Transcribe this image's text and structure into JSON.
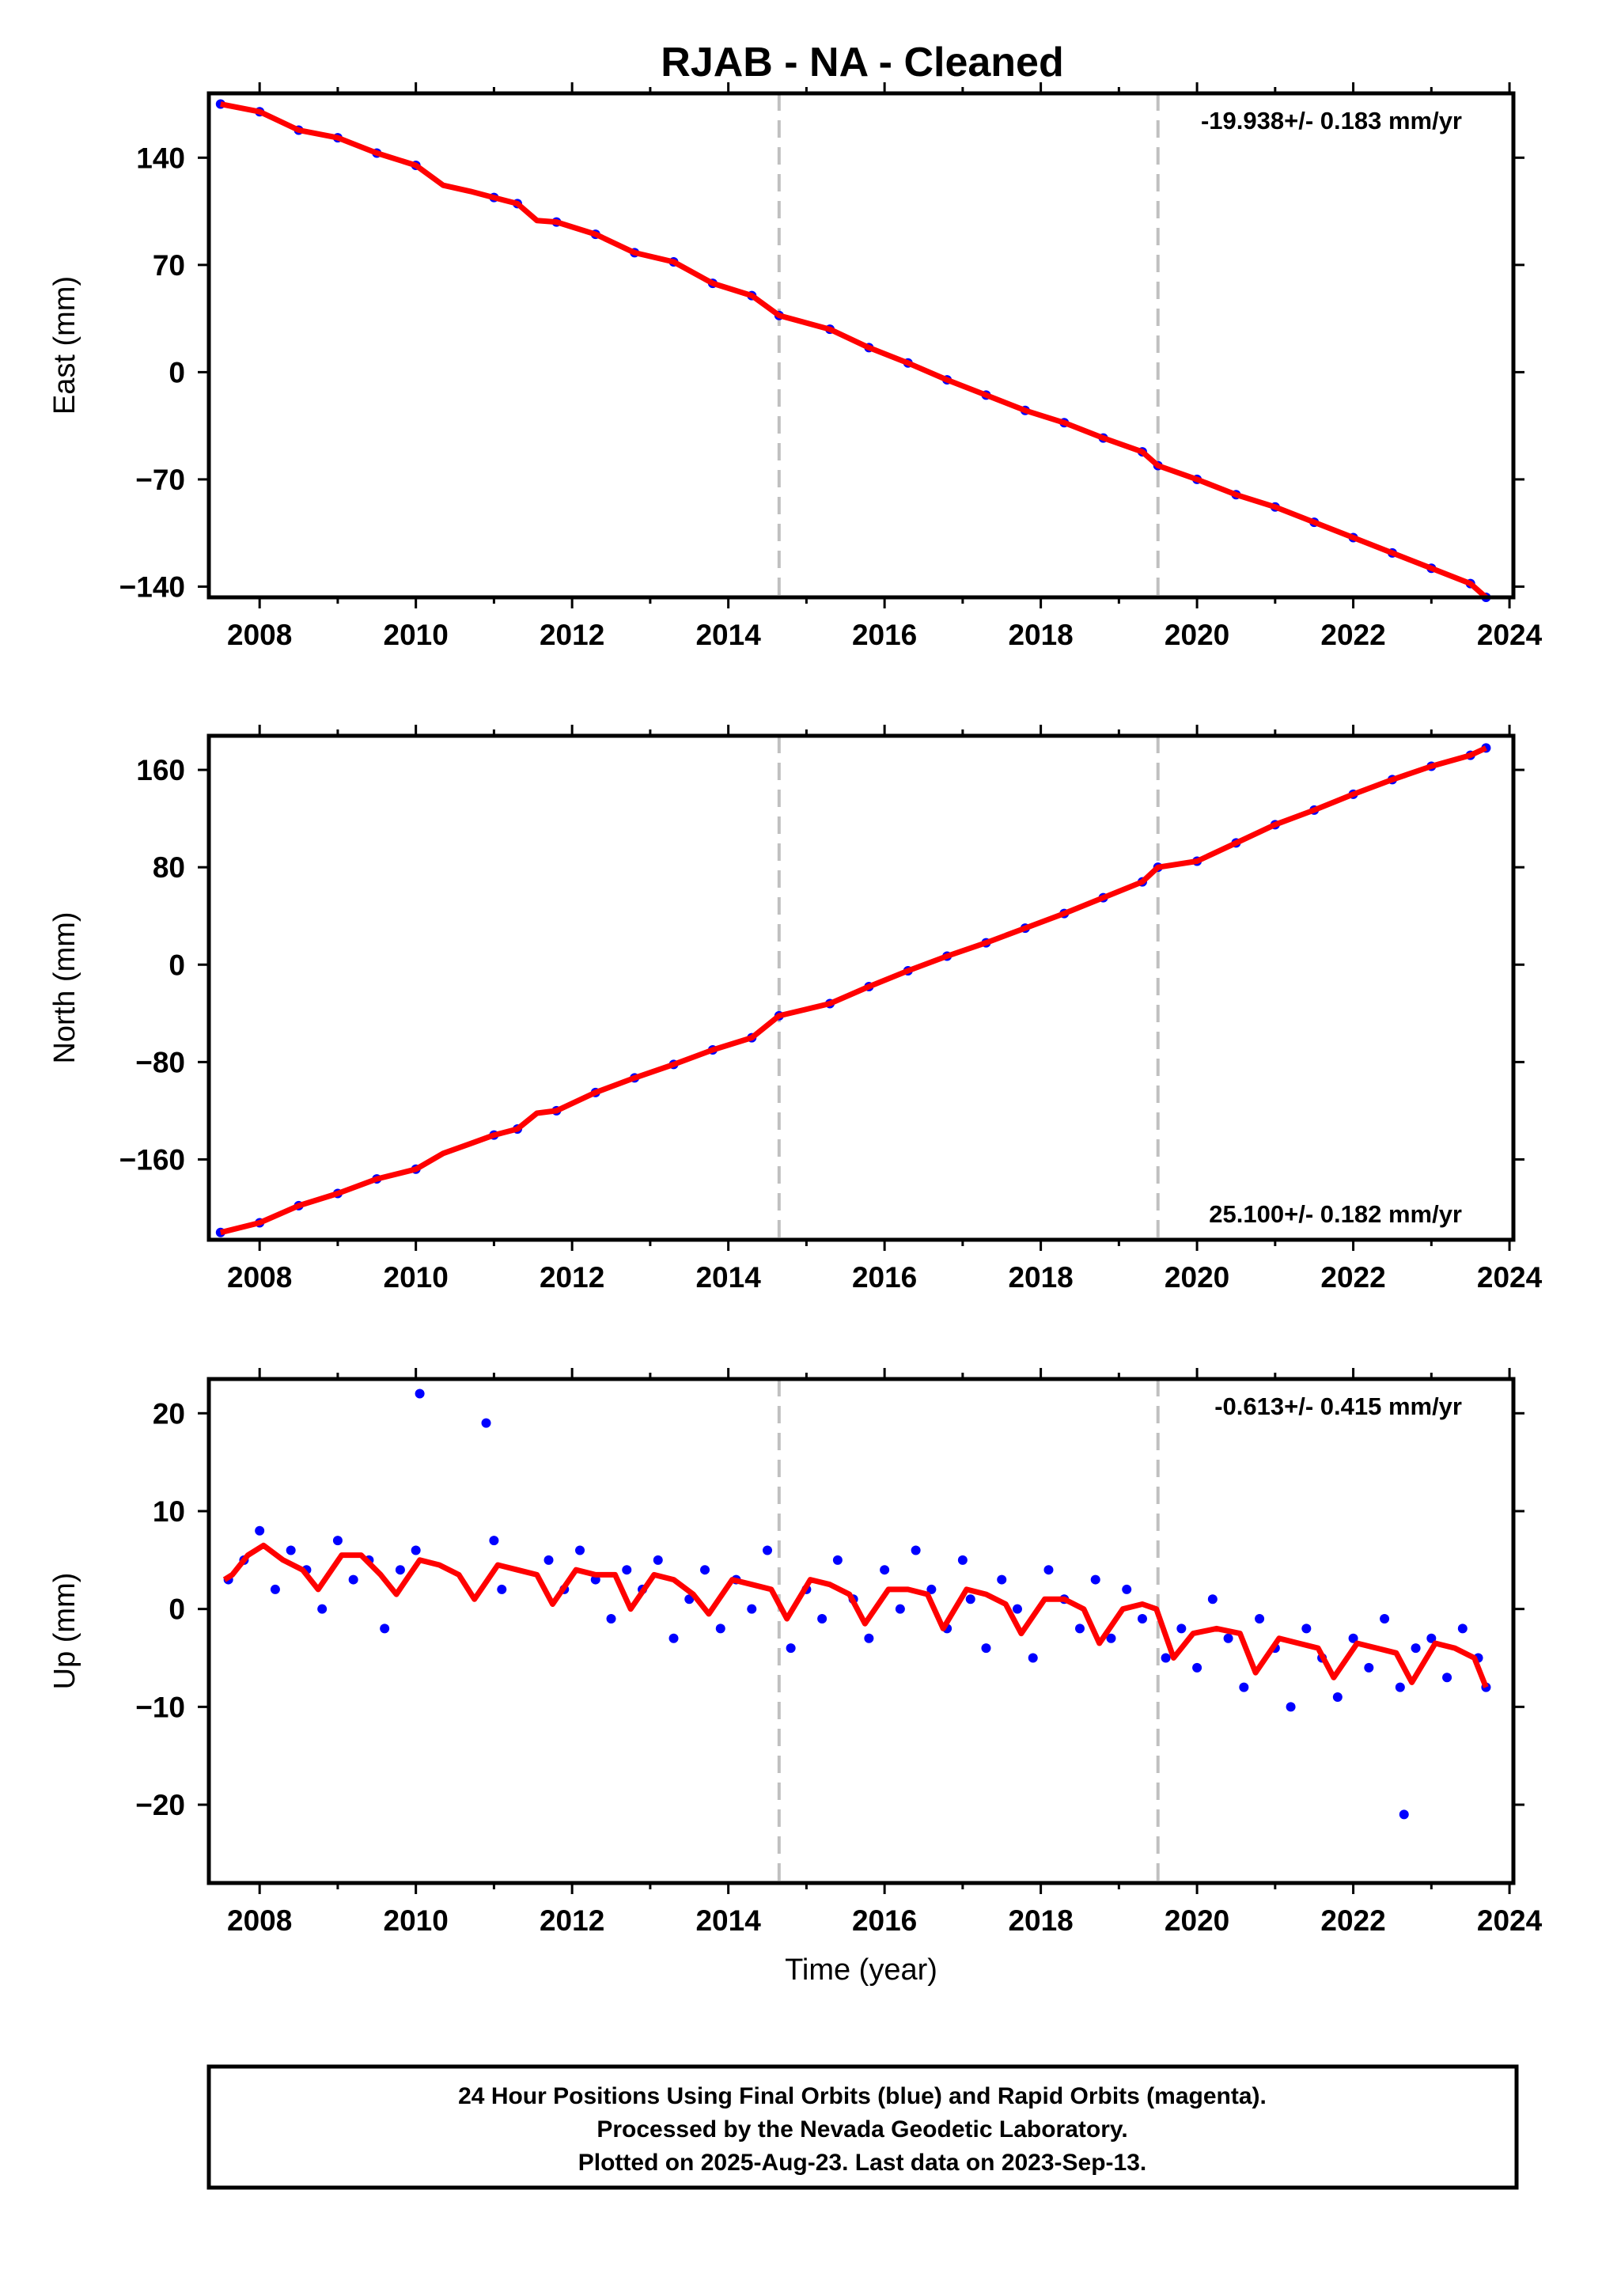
{
  "chart_data": [
    {
      "type": "scatter",
      "title": "RJAB  - NA - Cleaned",
      "ylabel": "East (mm)",
      "rate_label": "-19.938+/- 0.183 mm/yr",
      "rate_position": "top-right",
      "xlim": [
        2007.35,
        2024.05
      ],
      "ylim": [
        -147,
        182
      ],
      "x_ticks": [
        "2008",
        "2010",
        "2012",
        "2014",
        "2016",
        "2018",
        "2020",
        "2022",
        "2024"
      ],
      "y_ticks": [
        140,
        70,
        0,
        -70,
        -140
      ],
      "y_tick_labels": [
        "140",
        "70",
        "0",
        "−70",
        "−140"
      ],
      "grid": false,
      "breaks": [
        2014.65,
        2019.5
      ],
      "series": [
        {
          "color": "#0000ff",
          "marker": "dot",
          "x": [
            2007.5,
            2008,
            2008.5,
            2009,
            2009.5,
            2010,
            2011,
            2011.3,
            2011.8,
            2012.3,
            2012.8,
            2013.3,
            2013.8,
            2014.3,
            2014.65,
            2015.3,
            2015.8,
            2016.3,
            2016.8,
            2017.3,
            2017.8,
            2018.3,
            2018.8,
            2019.3,
            2019.5,
            2020,
            2020.5,
            2021,
            2021.5,
            2022,
            2022.5,
            2023,
            2023.5,
            2023.7
          ],
          "y": [
            175,
            170,
            158,
            153,
            143,
            135,
            114,
            110,
            98,
            90,
            78,
            72,
            58,
            50,
            37,
            28,
            16,
            6,
            -5,
            -15,
            -25,
            -33,
            -43,
            -52,
            -61,
            -70,
            -80,
            -88,
            -98,
            -108,
            -118,
            -128,
            -138,
            -147
          ]
        },
        {
          "color": "#ff0000",
          "marker": "line",
          "x": [
            2007.5,
            2008,
            2008.5,
            2009,
            2009.5,
            2010,
            2010.35,
            2010.7,
            2011,
            2011.3,
            2011.55,
            2011.8,
            2012.3,
            2012.8,
            2013.3,
            2013.8,
            2014.3,
            2014.65,
            2015.3,
            2015.8,
            2016.3,
            2016.8,
            2017.3,
            2017.8,
            2018.3,
            2018.8,
            2019.3,
            2019.5,
            2020,
            2020.5,
            2021,
            2021.5,
            2022,
            2022.5,
            2023,
            2023.5,
            2023.7
          ],
          "y": [
            175,
            170,
            158,
            153,
            143,
            135,
            122,
            118,
            114,
            110,
            99,
            98,
            90,
            78,
            72,
            58,
            50,
            37,
            28,
            16,
            6,
            -5,
            -15,
            -25,
            -33,
            -43,
            -52,
            -61,
            -70,
            -80,
            -88,
            -98,
            -108,
            -118,
            -128,
            -138,
            -147
          ]
        }
      ]
    },
    {
      "type": "scatter",
      "ylabel": "North (mm)",
      "rate_label": "25.100+/- 0.182 mm/yr",
      "rate_position": "bottom-right",
      "xlim": [
        2007.35,
        2024.05
      ],
      "ylim": [
        -226,
        188
      ],
      "x_ticks": [
        "2008",
        "2010",
        "2012",
        "2014",
        "2016",
        "2018",
        "2020",
        "2022",
        "2024"
      ],
      "y_ticks": [
        160,
        80,
        0,
        -80,
        -160
      ],
      "y_tick_labels": [
        "160",
        "80",
        "0",
        "−80",
        "−160"
      ],
      "grid": false,
      "breaks": [
        2014.65,
        2019.5
      ],
      "series": [
        {
          "color": "#0000ff",
          "marker": "dot",
          "x": [
            2007.5,
            2008,
            2008.5,
            2009,
            2009.5,
            2010,
            2011,
            2011.3,
            2011.8,
            2012.3,
            2012.8,
            2013.3,
            2013.8,
            2014.3,
            2014.65,
            2015.3,
            2015.8,
            2016.3,
            2016.8,
            2017.3,
            2017.8,
            2018.3,
            2018.8,
            2019.3,
            2019.5,
            2020,
            2020.5,
            2021,
            2021.5,
            2022,
            2022.5,
            2023,
            2023.5,
            2023.7
          ],
          "y": [
            -220,
            -212,
            -198,
            -188,
            -176,
            -168,
            -140,
            -135,
            -120,
            -105,
            -93,
            -82,
            -70,
            -60,
            -42,
            -32,
            -18,
            -5,
            7,
            18,
            30,
            42,
            55,
            68,
            80,
            85,
            100,
            115,
            127,
            140,
            152,
            163,
            172,
            178
          ]
        },
        {
          "color": "#ff0000",
          "marker": "line",
          "x": [
            2007.5,
            2008,
            2008.5,
            2009,
            2009.5,
            2010,
            2010.35,
            2010.7,
            2011,
            2011.3,
            2011.55,
            2011.8,
            2012.3,
            2012.8,
            2013.3,
            2013.8,
            2014.3,
            2014.65,
            2015.3,
            2015.8,
            2016.3,
            2016.8,
            2017.3,
            2017.8,
            2018.3,
            2018.8,
            2019.3,
            2019.5,
            2020,
            2020.5,
            2021,
            2021.5,
            2022,
            2022.5,
            2023,
            2023.5,
            2023.7
          ],
          "y": [
            -220,
            -212,
            -198,
            -188,
            -176,
            -168,
            -155,
            -147,
            -140,
            -135,
            -122,
            -120,
            -105,
            -93,
            -82,
            -70,
            -60,
            -42,
            -32,
            -18,
            -5,
            7,
            18,
            30,
            42,
            55,
            68,
            80,
            85,
            100,
            115,
            127,
            140,
            152,
            163,
            172,
            178
          ]
        }
      ]
    },
    {
      "type": "scatter",
      "ylabel": "Up (mm)",
      "xlabel": "Time (year)",
      "rate_label": "-0.613+/- 0.415 mm/yr",
      "rate_position": "top-right",
      "xlim": [
        2007.35,
        2024.05
      ],
      "ylim": [
        -28,
        23.5
      ],
      "x_ticks": [
        "2008",
        "2010",
        "2012",
        "2014",
        "2016",
        "2018",
        "2020",
        "2022",
        "2024"
      ],
      "y_ticks": [
        20,
        10,
        0,
        -10,
        -20
      ],
      "y_tick_labels": [
        "20",
        "10",
        "0",
        "−10",
        "−20"
      ],
      "grid": false,
      "breaks": [
        2014.65,
        2019.5
      ],
      "series": [
        {
          "color": "#0000ff",
          "marker": "dot",
          "x": [
            2007.6,
            2007.8,
            2008.0,
            2008.2,
            2008.4,
            2008.6,
            2008.8,
            2009.0,
            2009.2,
            2009.4,
            2009.6,
            2009.8,
            2010.0,
            2010.05,
            2010.9,
            2011.0,
            2011.1,
            2011.7,
            2011.9,
            2012.1,
            2012.3,
            2012.5,
            2012.7,
            2012.9,
            2013.1,
            2013.3,
            2013.5,
            2013.7,
            2013.9,
            2014.1,
            2014.3,
            2014.5,
            2014.8,
            2015.0,
            2015.2,
            2015.4,
            2015.6,
            2015.8,
            2016.0,
            2016.2,
            2016.4,
            2016.6,
            2016.8,
            2017.0,
            2017.1,
            2017.3,
            2017.5,
            2017.7,
            2017.9,
            2018.1,
            2018.3,
            2018.5,
            2018.7,
            2018.9,
            2019.1,
            2019.3,
            2019.6,
            2019.8,
            2020.0,
            2020.2,
            2020.4,
            2020.6,
            2020.8,
            2021.0,
            2021.2,
            2021.4,
            2021.6,
            2021.8,
            2022.0,
            2022.2,
            2022.4,
            2022.6,
            2022.65,
            2022.8,
            2023.0,
            2023.2,
            2023.4,
            2023.6,
            2023.7
          ],
          "y": [
            3,
            5,
            8,
            2,
            6,
            4,
            0,
            7,
            3,
            5,
            -2,
            4,
            6,
            22,
            19,
            7,
            2,
            5,
            2,
            6,
            3,
            -1,
            4,
            2,
            5,
            -3,
            1,
            4,
            -2,
            3,
            0,
            6,
            -4,
            2,
            -1,
            5,
            1,
            -3,
            4,
            0,
            6,
            2,
            -2,
            5,
            1,
            -4,
            3,
            0,
            -5,
            4,
            1,
            -2,
            3,
            -3,
            2,
            -1,
            -5,
            -2,
            -6,
            1,
            -3,
            -8,
            -1,
            -4,
            -10,
            -2,
            -5,
            -9,
            -3,
            -6,
            -1,
            -8,
            -21,
            -4,
            -3,
            -7,
            -2,
            -5,
            -8
          ]
        },
        {
          "color": "#ff0000",
          "marker": "line",
          "x": [
            2007.55,
            2007.65,
            2007.85,
            2008.05,
            2008.3,
            2008.55,
            2008.75,
            2009.05,
            2009.3,
            2009.55,
            2009.75,
            2010.05,
            2010.3,
            2010.55,
            2010.75,
            2011.05,
            2011.3,
            2011.55,
            2011.75,
            2012.05,
            2012.3,
            2012.55,
            2012.75,
            2013.05,
            2013.3,
            2013.55,
            2013.75,
            2014.05,
            2014.3,
            2014.55,
            2014.75,
            2015.05,
            2015.3,
            2015.55,
            2015.75,
            2016.05,
            2016.3,
            2016.55,
            2016.75,
            2017.05,
            2017.3,
            2017.55,
            2017.75,
            2018.05,
            2018.3,
            2018.55,
            2018.75,
            2019.05,
            2019.3,
            2019.48,
            2019.7,
            2019.95,
            2020.25,
            2020.55,
            2020.75,
            2021.05,
            2021.3,
            2021.55,
            2021.75,
            2022.05,
            2022.3,
            2022.55,
            2022.75,
            2023.05,
            2023.3,
            2023.55,
            2023.7
          ],
          "y": [
            3,
            3.5,
            5.5,
            6.5,
            5,
            4,
            2,
            5.5,
            5.5,
            3.5,
            1.5,
            5,
            4.5,
            3.5,
            1,
            4.5,
            4,
            3.5,
            0.5,
            4,
            3.5,
            3.5,
            0,
            3.5,
            3,
            1.5,
            -0.5,
            3,
            2.5,
            2,
            -1,
            3,
            2.5,
            1.5,
            -1.5,
            2,
            2,
            1.5,
            -2,
            2,
            1.5,
            0.5,
            -2.5,
            1,
            1,
            0,
            -3.5,
            0,
            0.5,
            0,
            -5,
            -2.5,
            -2,
            -2.5,
            -6.5,
            -3,
            -3.5,
            -4,
            -7,
            -3.5,
            -4,
            -4.5,
            -7.5,
            -3.5,
            -4,
            -5,
            -8
          ]
        }
      ]
    }
  ],
  "footer": {
    "line1": "24 Hour Positions Using Final Orbits (blue) and Rapid Orbits (magenta).",
    "line2": "Processed by the Nevada Geodetic Laboratory.",
    "line3": "Plotted on 2025-Aug-23. Last data on 2023-Sep-13."
  },
  "colors": {
    "final_orbit": "#0000ff",
    "model_fit": "#ff0000",
    "break_line": "#c0c0c0",
    "frame": "#000000"
  }
}
